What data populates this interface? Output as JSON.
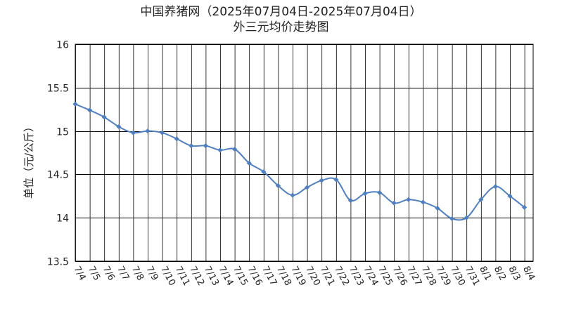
{
  "chart_data": {
    "type": "line",
    "title": "中国养猪网（2025年07月04日-2025年07月04日）",
    "subtitle": "外三元均价走势图",
    "xlabel": "",
    "ylabel": "单位（元/公斤）",
    "ylim": [
      13.5,
      16
    ],
    "yticks": [
      "13.5",
      "14",
      "14.5",
      "15",
      "15.5",
      "16"
    ],
    "grid": true,
    "legend": "none",
    "line_color": "#4f7fbf",
    "categories": [
      "7/4",
      "7/5",
      "7/6",
      "7/7",
      "7/8",
      "7/9",
      "7/10",
      "7/11",
      "7/12",
      "7/13",
      "7/14",
      "7/15",
      "7/16",
      "7/17",
      "7/18",
      "7/19",
      "7/20",
      "7/21",
      "7/22",
      "7/23",
      "7/24",
      "7/25",
      "7/26",
      "7/27",
      "7/28",
      "7/29",
      "7/30",
      "7/31",
      "8/1",
      "8/2",
      "8/3",
      "8/4"
    ],
    "series": [
      {
        "values": [
          15.31,
          15.24,
          15.16,
          15.05,
          14.98,
          15.0,
          14.98,
          14.91,
          14.83,
          14.83,
          14.78,
          14.79,
          14.63,
          14.53,
          14.37,
          14.26,
          14.35,
          14.43,
          14.44,
          14.2,
          14.28,
          14.29,
          14.17,
          14.21,
          14.18,
          14.11,
          13.99,
          14.0,
          14.21,
          14.36,
          14.25,
          14.12
        ]
      }
    ]
  }
}
